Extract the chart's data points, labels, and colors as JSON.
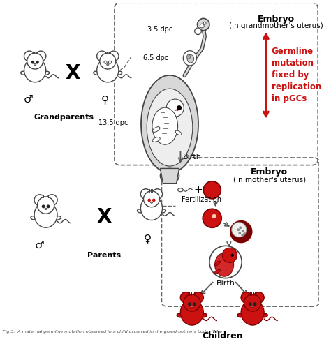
{
  "background_color": "#ffffff",
  "grandparents_label": "Grandparents",
  "parents_label": "Parents",
  "children_label": "Children",
  "embryo_label1": "Embryo",
  "embryo_label2": "(in grandmother's uterus)",
  "embryo_label3": "(in mother's uterus)",
  "dpc1": "3.5 dpc",
  "dpc2": "6.5 dpc",
  "dpc3": "13.5 dpc",
  "birth_label": "Birth",
  "birth_label2": "Birth",
  "fertilization_label": "Fertilization",
  "germline_text": "Germline\nmutation\nfixed by\nreplication\nin pGCs",
  "caption": "Fig 3.  A maternal germline mutation observed in a child occurred in the grandmother's body.  Whe",
  "red_color": "#cc1111",
  "dark_red": "#7a0000",
  "outline_color": "#444444",
  "arrow_color": "#555555",
  "dashed_box_color": "#666666",
  "male_symbol": "♂",
  "female_symbol": "♀"
}
